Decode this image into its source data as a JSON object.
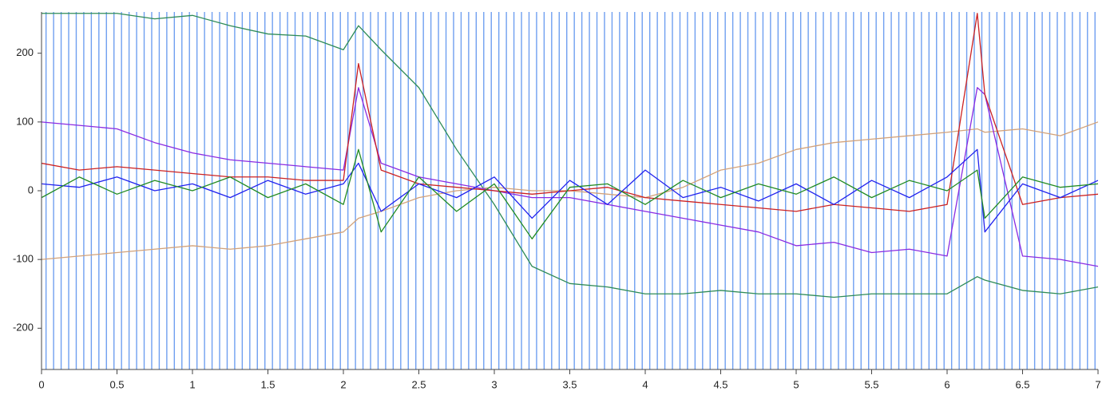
{
  "chart_data": {
    "type": "line",
    "x": [
      0,
      0.25,
      0.5,
      0.75,
      1,
      1.25,
      1.5,
      1.75,
      2,
      2.1,
      2.25,
      2.5,
      2.75,
      3,
      3.25,
      3.5,
      3.75,
      4,
      4.25,
      4.5,
      4.75,
      5,
      5.25,
      5.5,
      5.75,
      6,
      6.2,
      6.25,
      6.5,
      6.75,
      7
    ],
    "series": [
      {
        "color": "#2e8b57",
        "values": [
          258,
          258,
          258,
          250,
          255,
          240,
          228,
          225,
          205,
          240,
          205,
          150,
          60,
          -20,
          -110,
          -135,
          -140,
          -150,
          -150,
          -145,
          -150,
          -150,
          -155,
          -150,
          -150,
          -150,
          -125,
          -130,
          -145,
          -150,
          -140
        ]
      },
      {
        "color": "#d2a27a",
        "values": [
          -100,
          -95,
          -90,
          -85,
          -80,
          -85,
          -80,
          -70,
          -60,
          -40,
          -30,
          -10,
          0,
          5,
          0,
          0,
          -5,
          -10,
          5,
          30,
          40,
          60,
          70,
          75,
          80,
          85,
          90,
          85,
          90,
          80,
          100
        ]
      },
      {
        "color": "#8a2be2",
        "values": [
          100,
          95,
          90,
          70,
          55,
          45,
          40,
          35,
          30,
          150,
          40,
          20,
          10,
          0,
          -10,
          -10,
          -20,
          -30,
          -40,
          -50,
          -60,
          -80,
          -75,
          -90,
          -85,
          -95,
          150,
          140,
          -95,
          -100,
          -110
        ]
      },
      {
        "color": "#cc2222",
        "values": [
          40,
          30,
          35,
          30,
          25,
          20,
          20,
          15,
          15,
          185,
          30,
          10,
          5,
          0,
          -5,
          0,
          5,
          -10,
          -15,
          -20,
          -25,
          -30,
          -20,
          -25,
          -30,
          -20,
          258,
          140,
          -20,
          -10,
          -5
        ]
      },
      {
        "color": "#2222ee",
        "values": [
          10,
          5,
          20,
          0,
          10,
          -10,
          15,
          -5,
          10,
          40,
          -30,
          10,
          -10,
          20,
          -40,
          15,
          -20,
          30,
          -10,
          5,
          -15,
          10,
          -20,
          15,
          -10,
          20,
          60,
          -60,
          10,
          -10,
          15
        ]
      },
      {
        "color": "#228b22",
        "values": [
          -10,
          20,
          -5,
          15,
          0,
          20,
          -10,
          10,
          -20,
          60,
          -60,
          20,
          -30,
          10,
          -70,
          5,
          10,
          -20,
          15,
          -10,
          10,
          -5,
          20,
          -10,
          15,
          0,
          30,
          -40,
          20,
          5,
          10
        ]
      }
    ],
    "event_lines": [
      0.03,
      0.08,
      0.13,
      0.18,
      0.23,
      0.28,
      0.33,
      0.38,
      0.43,
      0.48,
      0.53,
      0.58,
      0.63,
      0.68,
      0.73,
      0.78,
      0.83,
      0.88,
      0.93,
      0.98,
      1.03,
      1.08,
      1.13,
      1.18,
      1.23,
      1.28,
      1.33,
      1.38,
      1.43,
      1.48,
      1.53,
      1.58,
      1.63,
      1.68,
      1.73,
      1.78,
      1.83,
      1.88,
      1.93,
      1.98,
      2.03,
      2.08,
      2.13,
      2.18,
      2.23,
      2.28,
      2.33,
      2.38,
      2.43,
      2.48,
      2.53,
      2.58,
      2.63,
      2.68,
      2.73,
      2.78,
      2.83,
      2.88,
      2.93,
      2.98,
      3.03,
      3.08,
      3.13,
      3.18,
      3.23,
      3.28,
      3.33,
      3.38,
      3.43,
      3.48,
      3.53,
      3.58,
      3.63,
      3.68,
      3.73,
      3.78,
      3.83,
      3.88,
      3.93,
      3.98,
      4.03,
      4.08,
      4.13,
      4.18,
      4.23,
      4.28,
      4.33,
      4.38,
      4.43,
      4.48,
      4.53,
      4.58,
      4.63,
      4.68,
      4.73,
      4.78,
      4.83,
      4.88,
      4.93,
      4.98,
      5.03,
      5.08,
      5.13,
      5.18,
      5.23,
      5.28,
      5.33,
      5.38,
      5.43,
      5.48,
      5.53,
      5.58,
      5.63,
      5.68,
      5.73,
      5.78,
      5.83,
      5.88,
      5.93,
      5.98,
      6.03,
      6.08,
      6.13,
      6.18,
      6.23,
      6.28,
      6.33,
      6.38,
      6.43,
      6.48,
      6.53,
      6.58,
      6.63,
      6.68,
      6.73,
      6.78,
      6.83,
      6.88,
      6.93,
      6.98
    ],
    "event_color": "#6f9ff0",
    "xlim": [
      0,
      7
    ],
    "xticks": [
      0,
      0.5,
      1,
      1.5,
      2,
      2.5,
      3,
      3.5,
      4,
      4.5,
      5,
      5.5,
      6,
      6.5,
      7
    ],
    "ylim": [
      -260,
      260
    ],
    "yticks": [
      -200,
      -100,
      0,
      100,
      200
    ]
  }
}
